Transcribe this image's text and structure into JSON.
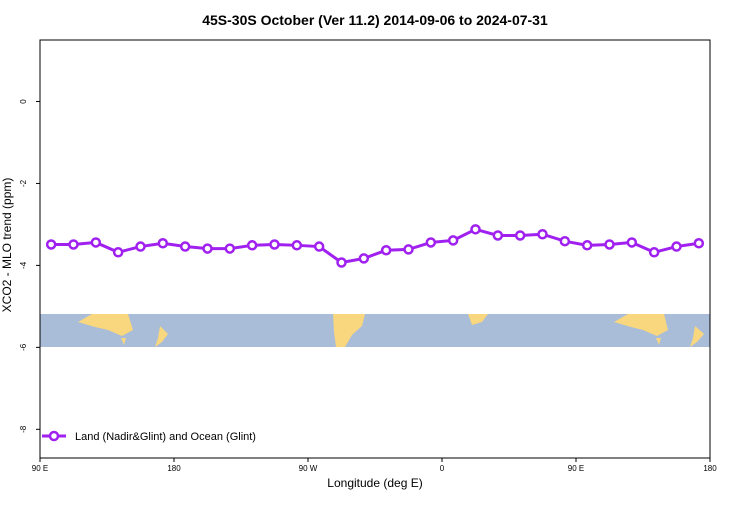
{
  "chart_data": {
    "type": "line",
    "title": "45S-30S October (Ver 11.2)   2014-09-06 to 2024-07-31",
    "x_label": "Longitude (deg E)",
    "y_label": "XCO2 - MLO trend (ppm)",
    "x": [
      97.5,
      112.5,
      127.5,
      142.5,
      157.5,
      172.5,
      187.5,
      202.5,
      217.5,
      232.5,
      247.5,
      262.5,
      277.5,
      292.5,
      307.5,
      322.5,
      337.5,
      352.5,
      367.5,
      382.5,
      397.5,
      412.5,
      427.5,
      442.5,
      457.5,
      472.5,
      487.5,
      502.5,
      517.5,
      532.5
    ],
    "series": [
      {
        "name": "Land (Nadir&Glint) and Ocean (Glint)",
        "color": "#a020f0",
        "values": [
          -3.49,
          -3.49,
          -3.44,
          -3.68,
          -3.54,
          -3.46,
          -3.54,
          -3.59,
          -3.59,
          -3.51,
          -3.49,
          -3.51,
          -3.54,
          -3.93,
          -3.83,
          -3.63,
          -3.61,
          -3.44,
          -3.39,
          -3.12,
          -3.27,
          -3.27,
          -3.24,
          -3.41,
          -3.51,
          -3.49,
          -3.44,
          -3.68,
          -3.54,
          -3.46
        ]
      }
    ],
    "xlim": [
      90,
      540
    ],
    "xticks": [
      {
        "value": 90,
        "label": "90 E"
      },
      {
        "value": 180,
        "label": "180"
      },
      {
        "value": 270,
        "label": "90 W"
      },
      {
        "value": 360,
        "label": "0"
      },
      {
        "value": 450,
        "label": "90 E"
      },
      {
        "value": 540,
        "label": "180"
      }
    ],
    "ylim": [
      -8.7,
      1.5
    ],
    "yticks": [
      -8,
      -6,
      -4,
      -2,
      0
    ],
    "legend": "bottom-left"
  }
}
